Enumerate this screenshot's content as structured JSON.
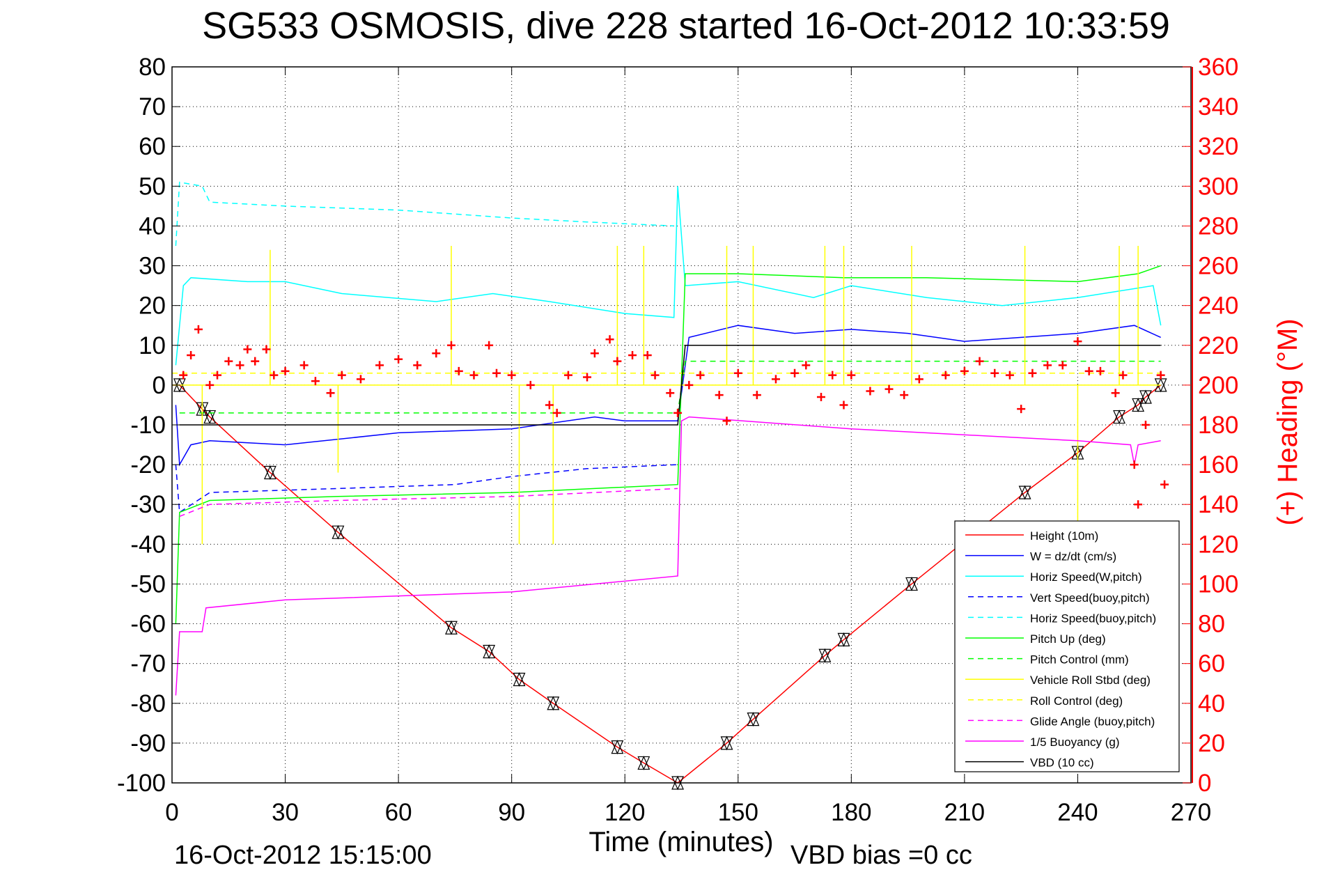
{
  "chart_data": {
    "type": "line",
    "title": "SG533 OSMOSIS, dive 228 started 16-Oct-2012 10:33:59",
    "xlabel": "Time (minutes)",
    "ylabel_right": "(+) Heading (°M)",
    "footer_left": "16-Oct-2012 15:15:00",
    "footer_right": "VBD bias =0 cc",
    "xlim": [
      0,
      270
    ],
    "ylim": [
      -100,
      80
    ],
    "ylim_right": [
      0,
      360
    ],
    "xticks": [
      0,
      30,
      60,
      90,
      120,
      150,
      180,
      210,
      240,
      270
    ],
    "yticks": [
      -100,
      -90,
      -80,
      -70,
      -60,
      -50,
      -40,
      -30,
      -20,
      -10,
      0,
      10,
      20,
      30,
      40,
      50,
      60,
      70,
      80
    ],
    "yticks_right": [
      0,
      20,
      40,
      60,
      80,
      100,
      120,
      140,
      160,
      180,
      200,
      220,
      240,
      260,
      280,
      300,
      320,
      340,
      360
    ],
    "grid": true,
    "legend_position": "bottom-right",
    "series": [
      {
        "name": "Height (10m)",
        "color": "#ff0000",
        "dash": false,
        "points": [
          [
            0,
            0
          ],
          [
            2,
            0
          ],
          [
            8,
            -6
          ],
          [
            10,
            -8
          ],
          [
            26,
            -22
          ],
          [
            44,
            -37
          ],
          [
            74,
            -61
          ],
          [
            84,
            -67
          ],
          [
            92,
            -74
          ],
          [
            101,
            -80
          ],
          [
            118,
            -91
          ],
          [
            125,
            -95
          ],
          [
            134,
            -100
          ],
          [
            147,
            -90
          ],
          [
            154,
            -84
          ],
          [
            173,
            -68
          ],
          [
            178,
            -64
          ],
          [
            196,
            -50
          ],
          [
            226,
            -27
          ],
          [
            240,
            -17
          ],
          [
            251,
            -8
          ],
          [
            256,
            -5
          ],
          [
            258,
            -3
          ],
          [
            262,
            0
          ]
        ],
        "markers": [
          [
            2,
            0
          ],
          [
            8,
            -6
          ],
          [
            10,
            -8
          ],
          [
            26,
            -22
          ],
          [
            44,
            -37
          ],
          [
            74,
            -61
          ],
          [
            84,
            -67
          ],
          [
            92,
            -74
          ],
          [
            101,
            -80
          ],
          [
            118,
            -91
          ],
          [
            125,
            -95
          ],
          [
            134,
            -100
          ],
          [
            147,
            -90
          ],
          [
            154,
            -84
          ],
          [
            173,
            -68
          ],
          [
            178,
            -64
          ],
          [
            196,
            -50
          ],
          [
            226,
            -27
          ],
          [
            240,
            -17
          ],
          [
            251,
            -8
          ],
          [
            256,
            -5
          ],
          [
            258,
            -3
          ],
          [
            262,
            0
          ]
        ]
      },
      {
        "name": "W = dz/dt (cm/s)",
        "color": "#0000ff",
        "dash": false,
        "points": [
          [
            1,
            -5
          ],
          [
            2,
            -20
          ],
          [
            5,
            -15
          ],
          [
            10,
            -14
          ],
          [
            30,
            -15
          ],
          [
            60,
            -12
          ],
          [
            90,
            -11
          ],
          [
            112,
            -8
          ],
          [
            120,
            -9
          ],
          [
            134,
            -9
          ],
          [
            137,
            12
          ],
          [
            150,
            15
          ],
          [
            165,
            13
          ],
          [
            180,
            14
          ],
          [
            195,
            13
          ],
          [
            210,
            11
          ],
          [
            225,
            12
          ],
          [
            240,
            13
          ],
          [
            255,
            15
          ],
          [
            262,
            12
          ]
        ]
      },
      {
        "name": "Horiz Speed(W,pitch)",
        "color": "#00ffff",
        "dash": false,
        "points": [
          [
            1,
            5
          ],
          [
            3,
            25
          ],
          [
            5,
            27
          ],
          [
            20,
            26
          ],
          [
            30,
            26
          ],
          [
            45,
            23
          ],
          [
            70,
            21
          ],
          [
            85,
            23
          ],
          [
            100,
            21
          ],
          [
            120,
            18
          ],
          [
            133,
            17
          ],
          [
            134,
            50
          ],
          [
            136,
            25
          ],
          [
            150,
            26
          ],
          [
            170,
            22
          ],
          [
            180,
            25
          ],
          [
            200,
            22
          ],
          [
            220,
            20
          ],
          [
            240,
            22
          ],
          [
            260,
            25
          ],
          [
            262,
            15
          ]
        ]
      },
      {
        "name": "Vert Speed(buoy,pitch)",
        "color": "#0000ff",
        "dash": true,
        "points": [
          [
            1,
            -20
          ],
          [
            2,
            -32
          ],
          [
            10,
            -27
          ],
          [
            44,
            -26
          ],
          [
            75,
            -25
          ],
          [
            90,
            -23
          ],
          [
            110,
            -21
          ],
          [
            134,
            -20
          ]
        ]
      },
      {
        "name": "Horiz Speed(buoy,pitch)",
        "color": "#00ffff",
        "dash": true,
        "points": [
          [
            1,
            35
          ],
          [
            2,
            51
          ],
          [
            8,
            50
          ],
          [
            10,
            46
          ],
          [
            30,
            45
          ],
          [
            60,
            44
          ],
          [
            90,
            42
          ],
          [
            110,
            41
          ],
          [
            133,
            40
          ]
        ]
      },
      {
        "name": "Pitch Up (deg)",
        "color": "#00ff00",
        "dash": false,
        "points": [
          [
            1,
            -60
          ],
          [
            2,
            -32
          ],
          [
            10,
            -29
          ],
          [
            44,
            -28
          ],
          [
            90,
            -27
          ],
          [
            134,
            -25
          ],
          [
            136,
            28
          ],
          [
            150,
            28
          ],
          [
            178,
            27
          ],
          [
            200,
            27
          ],
          [
            240,
            26
          ],
          [
            256,
            28
          ],
          [
            262,
            30
          ]
        ]
      },
      {
        "name": "Pitch Control (mm)",
        "color": "#00ff00",
        "dash": true,
        "points": [
          [
            2,
            -7
          ],
          [
            134,
            -7
          ],
          [
            136,
            6
          ],
          [
            262,
            6
          ]
        ]
      },
      {
        "name": "Vehicle Roll Stbd (deg)",
        "color": "#ffff00",
        "dash": false,
        "points": [
          [
            0,
            0
          ],
          [
            262,
            0
          ]
        ],
        "spikes": [
          [
            8,
            -40
          ],
          [
            26,
            34
          ],
          [
            44,
            -22
          ],
          [
            74,
            35
          ],
          [
            92,
            -40
          ],
          [
            101,
            -40
          ],
          [
            118,
            35
          ],
          [
            125,
            35
          ],
          [
            147,
            35
          ],
          [
            154,
            35
          ],
          [
            173,
            35
          ],
          [
            178,
            35
          ],
          [
            196,
            35
          ],
          [
            226,
            35
          ],
          [
            240,
            -35
          ],
          [
            251,
            35
          ],
          [
            256,
            35
          ]
        ]
      },
      {
        "name": "Roll Control (deg)",
        "color": "#ffff00",
        "dash": true,
        "points": [
          [
            0,
            3
          ],
          [
            262,
            3
          ]
        ]
      },
      {
        "name": "Glide Angle (buoy,pitch)",
        "color": "#ff00ff",
        "dash": true,
        "points": [
          [
            2,
            -33
          ],
          [
            10,
            -30
          ],
          [
            44,
            -29
          ],
          [
            90,
            -28
          ],
          [
            134,
            -26
          ]
        ]
      },
      {
        "name": "1/5 Buoyancy (g)",
        "color": "#ff00ff",
        "dash": false,
        "points": [
          [
            1,
            -78
          ],
          [
            2,
            -62
          ],
          [
            8,
            -62
          ],
          [
            9,
            -56
          ],
          [
            30,
            -54
          ],
          [
            90,
            -52
          ],
          [
            134,
            -48
          ],
          [
            135,
            -9
          ],
          [
            137,
            -8
          ],
          [
            180,
            -11
          ],
          [
            240,
            -14
          ],
          [
            254,
            -15
          ],
          [
            255,
            -20
          ],
          [
            256,
            -15
          ],
          [
            262,
            -14
          ]
        ]
      },
      {
        "name": "VBD (10 cc)",
        "color": "#000000",
        "dash": false,
        "points": [
          [
            2,
            -10
          ],
          [
            134,
            -10
          ],
          [
            136,
            10
          ],
          [
            262,
            10
          ]
        ]
      }
    ],
    "heading": {
      "name": "Heading",
      "color": "#ff0000",
      "axis": "right",
      "points": [
        [
          3,
          205
        ],
        [
          5,
          215
        ],
        [
          7,
          228
        ],
        [
          10,
          200
        ],
        [
          12,
          205
        ],
        [
          15,
          212
        ],
        [
          18,
          210
        ],
        [
          20,
          218
        ],
        [
          22,
          212
        ],
        [
          25,
          218
        ],
        [
          27,
          205
        ],
        [
          30,
          207
        ],
        [
          35,
          210
        ],
        [
          38,
          202
        ],
        [
          42,
          196
        ],
        [
          45,
          205
        ],
        [
          50,
          203
        ],
        [
          55,
          210
        ],
        [
          60,
          213
        ],
        [
          65,
          210
        ],
        [
          70,
          216
        ],
        [
          74,
          220
        ],
        [
          76,
          207
        ],
        [
          80,
          205
        ],
        [
          84,
          220
        ],
        [
          86,
          206
        ],
        [
          90,
          205
        ],
        [
          95,
          200
        ],
        [
          100,
          190
        ],
        [
          102,
          186
        ],
        [
          105,
          205
        ],
        [
          110,
          204
        ],
        [
          112,
          216
        ],
        [
          116,
          223
        ],
        [
          118,
          212
        ],
        [
          122,
          215
        ],
        [
          126,
          215
        ],
        [
          128,
          205
        ],
        [
          132,
          196
        ],
        [
          134,
          186
        ],
        [
          137,
          200
        ],
        [
          140,
          205
        ],
        [
          145,
          195
        ],
        [
          147,
          182
        ],
        [
          150,
          206
        ],
        [
          155,
          195
        ],
        [
          160,
          203
        ],
        [
          165,
          206
        ],
        [
          168,
          210
        ],
        [
          172,
          194
        ],
        [
          175,
          205
        ],
        [
          178,
          190
        ],
        [
          180,
          205
        ],
        [
          185,
          197
        ],
        [
          190,
          198
        ],
        [
          194,
          195
        ],
        [
          198,
          203
        ],
        [
          205,
          205
        ],
        [
          210,
          207
        ],
        [
          214,
          212
        ],
        [
          218,
          206
        ],
        [
          222,
          205
        ],
        [
          225,
          188
        ],
        [
          228,
          206
        ],
        [
          232,
          210
        ],
        [
          236,
          210
        ],
        [
          240,
          222
        ],
        [
          243,
          207
        ],
        [
          246,
          207
        ],
        [
          250,
          196
        ],
        [
          252,
          205
        ],
        [
          255,
          160
        ],
        [
          256,
          140
        ],
        [
          258,
          180
        ],
        [
          262,
          205
        ],
        [
          263,
          150
        ]
      ]
    }
  }
}
